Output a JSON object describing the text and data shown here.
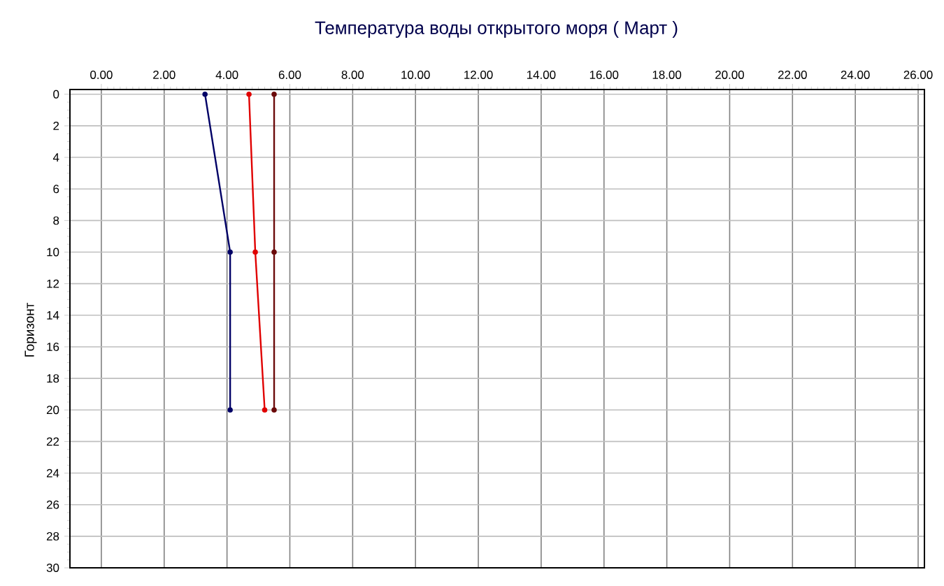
{
  "chart_data": {
    "type": "line",
    "title": "Температура воды открытого моря ( Март )",
    "ylabel": "Горизонт",
    "xlim": [
      -1,
      26.2
    ],
    "ylim": [
      30,
      -0.3
    ],
    "xticks": [
      {
        "value": 0,
        "label": "0.00"
      },
      {
        "value": 2,
        "label": "2.00"
      },
      {
        "value": 4,
        "label": "4.00"
      },
      {
        "value": 6,
        "label": "6.00"
      },
      {
        "value": 8,
        "label": "8.00"
      },
      {
        "value": 10,
        "label": "10.00"
      },
      {
        "value": 12,
        "label": "12.00"
      },
      {
        "value": 14,
        "label": "14.00"
      },
      {
        "value": 16,
        "label": "16.00"
      },
      {
        "value": 18,
        "label": "18.00"
      },
      {
        "value": 20,
        "label": "20.00"
      },
      {
        "value": 22,
        "label": "22.00"
      },
      {
        "value": 24,
        "label": "24.00"
      },
      {
        "value": 26,
        "label": "26.00"
      }
    ],
    "yticks": [
      0,
      2,
      4,
      6,
      8,
      10,
      12,
      14,
      16,
      18,
      20,
      22,
      24,
      26,
      28,
      30
    ],
    "grid": true,
    "marker": "circle",
    "line_style": "solid",
    "series": [
      {
        "color": "#000066",
        "x": [
          3.3,
          4.1,
          4.1
        ],
        "values": [
          0,
          10,
          20
        ]
      },
      {
        "color": "#e00000",
        "x": [
          4.7,
          4.9,
          5.2
        ],
        "values": [
          0,
          10,
          20
        ]
      },
      {
        "color": "#6b0a0a",
        "x": [
          5.5,
          5.5,
          5.5
        ],
        "values": [
          0,
          10,
          20
        ]
      }
    ]
  }
}
